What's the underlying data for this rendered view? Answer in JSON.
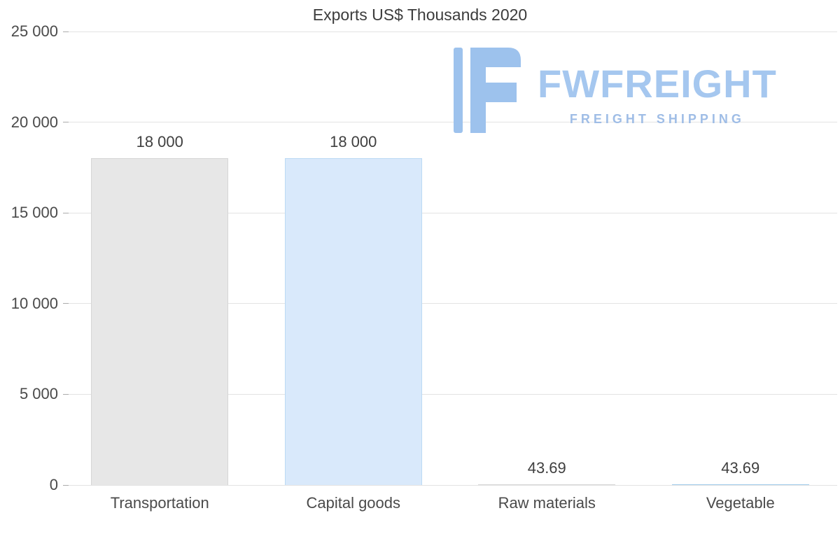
{
  "chart_data": {
    "type": "bar",
    "title": "Exports US$ Thousands 2020",
    "categories": [
      "Transportation",
      "Capital goods",
      "Raw materials",
      "Vegetable"
    ],
    "values": [
      18000,
      18000,
      43.69,
      43.69
    ],
    "value_labels": [
      "18 000",
      "18 000",
      "43.69",
      "43.69"
    ],
    "bar_colors": [
      "#e7e7e7",
      "#d9e9fb",
      "#e7e7e7",
      "#cfe5f7"
    ],
    "bar_border_colors": [
      "#d6d6d6",
      "#bcdaf4",
      "#d6d6d6",
      "#9fccec"
    ],
    "xlabel": "",
    "ylabel": "",
    "ylim": [
      0,
      25000
    ],
    "yticks": [
      0,
      5000,
      10000,
      15000,
      20000,
      25000
    ],
    "ytick_labels": [
      "0",
      "5 000",
      "10 000",
      "15 000",
      "20 000",
      "25 000"
    ],
    "grid": true,
    "legend": false,
    "grid_color": "#e3e3e3",
    "axis_text_color": "#4a4a4a"
  },
  "watermark": {
    "brand": "FWFREIGHT",
    "tagline": "FREIGHT SHIPPING",
    "brand_color": "#a5c7ef",
    "tagline_color": "#9fbde6",
    "icon_color": "#9dc2ed"
  }
}
